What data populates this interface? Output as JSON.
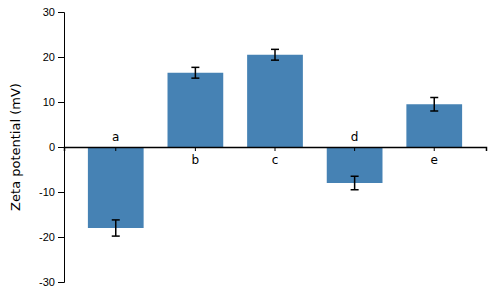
{
  "chart_data": {
    "type": "bar",
    "categories": [
      "a",
      "b",
      "c",
      "d",
      "e"
    ],
    "values": [
      -18.0,
      16.5,
      20.5,
      -8.0,
      9.5
    ],
    "errors": [
      1.8,
      1.2,
      1.2,
      1.5,
      1.5
    ],
    "ylabel": "Zeta potential (mV)",
    "ylim": [
      -30,
      30
    ],
    "yticks": [
      -30,
      -20,
      -10,
      0,
      10,
      20,
      30
    ]
  }
}
